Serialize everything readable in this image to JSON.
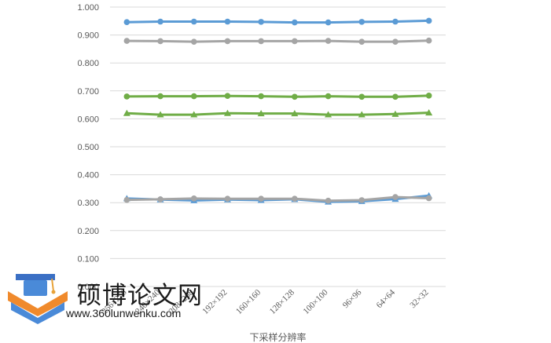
{
  "chart_data": {
    "type": "line",
    "title": "",
    "xlabel": "下采样分辨率",
    "ylabel": "",
    "ylim": [
      0,
      1
    ],
    "yticks": [
      "0.000",
      "0.100",
      "0.200",
      "0.300",
      "0.400",
      "0.500",
      "0.600",
      "0.700",
      "0.800",
      "0.900",
      "1.000"
    ],
    "categories": [
      "256×256",
      "240×240",
      "208×208",
      "192×192",
      "160×160",
      "128×128",
      "100×100",
      "96×96",
      "64×64",
      "32×32"
    ],
    "grid": true,
    "legend": "none",
    "series": [
      {
        "marker": "circle",
        "color": "#5b9bd5",
        "values": [
          0.946,
          0.948,
          0.948,
          0.948,
          0.947,
          0.945,
          0.945,
          0.947,
          0.948,
          0.951
        ]
      },
      {
        "marker": "circle",
        "color": "#a5a5a5",
        "values": [
          0.879,
          0.878,
          0.876,
          0.878,
          0.878,
          0.878,
          0.879,
          0.876,
          0.876,
          0.88
        ]
      },
      {
        "marker": "circle",
        "color": "#70ad47",
        "values": [
          0.68,
          0.681,
          0.681,
          0.682,
          0.681,
          0.679,
          0.681,
          0.679,
          0.679,
          0.683
        ]
      },
      {
        "marker": "triangle",
        "color": "#70ad47",
        "values": [
          0.62,
          0.615,
          0.615,
          0.62,
          0.619,
          0.619,
          0.615,
          0.615,
          0.617,
          0.622
        ]
      },
      {
        "marker": "triangle",
        "color": "#5b9bd5",
        "values": [
          0.315,
          0.311,
          0.308,
          0.311,
          0.309,
          0.312,
          0.303,
          0.305,
          0.313,
          0.325
        ]
      },
      {
        "marker": "circle",
        "color": "#a5a5a5",
        "values": [
          0.31,
          0.312,
          0.315,
          0.314,
          0.314,
          0.314,
          0.307,
          0.309,
          0.32,
          0.316
        ]
      }
    ]
  },
  "watermark": {
    "title": "硕博论文网",
    "url": "www.360lunwenku.com"
  }
}
